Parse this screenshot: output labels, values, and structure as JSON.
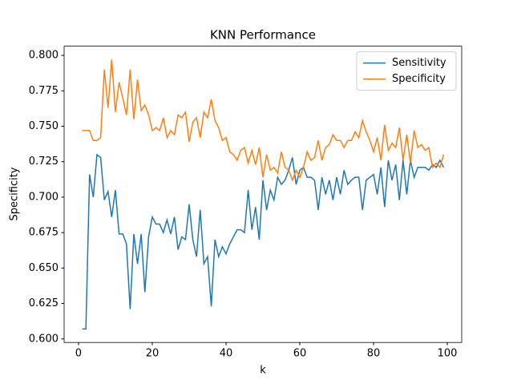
{
  "chart_data": {
    "type": "line",
    "title": "KNN Performance",
    "x_label": "k",
    "y_label": "Specificity",
    "x": [
      1,
      2,
      3,
      4,
      5,
      6,
      7,
      8,
      9,
      10,
      11,
      12,
      13,
      14,
      15,
      16,
      17,
      18,
      19,
      20,
      21,
      22,
      23,
      24,
      25,
      26,
      27,
      28,
      29,
      30,
      31,
      32,
      33,
      34,
      35,
      36,
      37,
      38,
      39,
      40,
      41,
      42,
      43,
      44,
      45,
      46,
      47,
      48,
      49,
      50,
      51,
      52,
      53,
      54,
      55,
      56,
      57,
      58,
      59,
      60,
      61,
      62,
      63,
      64,
      65,
      66,
      67,
      68,
      69,
      70,
      71,
      72,
      73,
      74,
      75,
      76,
      77,
      78,
      79,
      80,
      81,
      82,
      83,
      84,
      85,
      86,
      87,
      88,
      89,
      90,
      91,
      92,
      93,
      94,
      95,
      96,
      97,
      98,
      99
    ],
    "series": [
      {
        "name": "Sensitivity",
        "color": "#1f77b4",
        "values": [
          0.607,
          0.607,
          0.716,
          0.7,
          0.73,
          0.728,
          0.698,
          0.704,
          0.686,
          0.705,
          0.674,
          0.674,
          0.667,
          0.621,
          0.674,
          0.653,
          0.674,
          0.633,
          0.672,
          0.686,
          0.681,
          0.681,
          0.675,
          0.684,
          0.674,
          0.686,
          0.663,
          0.672,
          0.67,
          0.695,
          0.67,
          0.658,
          0.691,
          0.653,
          0.658,
          0.623,
          0.67,
          0.658,
          0.665,
          0.66,
          0.667,
          0.672,
          0.677,
          0.677,
          0.675,
          0.705,
          0.677,
          0.693,
          0.67,
          0.712,
          0.691,
          0.705,
          0.698,
          0.714,
          0.709,
          0.712,
          0.719,
          0.728,
          0.709,
          0.719,
          0.721,
          0.714,
          0.714,
          0.712,
          0.691,
          0.714,
          0.702,
          0.712,
          0.698,
          0.714,
          0.702,
          0.719,
          0.709,
          0.712,
          0.714,
          0.714,
          0.691,
          0.712,
          0.714,
          0.716,
          0.702,
          0.721,
          0.693,
          0.726,
          0.712,
          0.723,
          0.698,
          0.726,
          0.702,
          0.726,
          0.714,
          0.721,
          0.721,
          0.721,
          0.719,
          0.723,
          0.721,
          0.726,
          0.721
        ]
      },
      {
        "name": "Specificity",
        "color": "#ff7f0e",
        "values": [
          0.747,
          0.747,
          0.747,
          0.74,
          0.74,
          0.742,
          0.79,
          0.763,
          0.797,
          0.76,
          0.781,
          0.77,
          0.758,
          0.79,
          0.755,
          0.783,
          0.761,
          0.765,
          0.758,
          0.747,
          0.749,
          0.747,
          0.756,
          0.742,
          0.747,
          0.744,
          0.758,
          0.756,
          0.76,
          0.739,
          0.753,
          0.756,
          0.742,
          0.76,
          0.756,
          0.769,
          0.754,
          0.749,
          0.74,
          0.742,
          0.732,
          0.73,
          0.726,
          0.733,
          0.735,
          0.724,
          0.733,
          0.723,
          0.735,
          0.714,
          0.73,
          0.719,
          0.721,
          0.717,
          0.732,
          0.721,
          0.719,
          0.712,
          0.719,
          0.714,
          0.721,
          0.732,
          0.726,
          0.728,
          0.74,
          0.726,
          0.735,
          0.737,
          0.744,
          0.74,
          0.74,
          0.735,
          0.74,
          0.74,
          0.746,
          0.742,
          0.754,
          0.746,
          0.74,
          0.732,
          0.742,
          0.726,
          0.751,
          0.733,
          0.738,
          0.735,
          0.749,
          0.726,
          0.744,
          0.724,
          0.747,
          0.735,
          0.737,
          0.733,
          0.735,
          0.721,
          0.724,
          0.721,
          0.73
        ]
      }
    ],
    "xlim": [
      -3.9,
      103.9
    ],
    "xticks": [
      0,
      20,
      40,
      60,
      80,
      100
    ],
    "ylim": [
      0.5975,
      0.8065
    ],
    "yticks": [
      {
        "value": 0.6,
        "label": "0.600"
      },
      {
        "value": 0.625,
        "label": "0.625"
      },
      {
        "value": 0.65,
        "label": "0.650"
      },
      {
        "value": 0.675,
        "label": "0.675"
      },
      {
        "value": 0.7,
        "label": "0.700"
      },
      {
        "value": 0.725,
        "label": "0.725"
      },
      {
        "value": 0.75,
        "label": "0.750"
      },
      {
        "value": 0.775,
        "label": "0.775"
      },
      {
        "value": 0.8,
        "label": "0.800"
      }
    ],
    "legend": "upper right",
    "grid": false
  }
}
